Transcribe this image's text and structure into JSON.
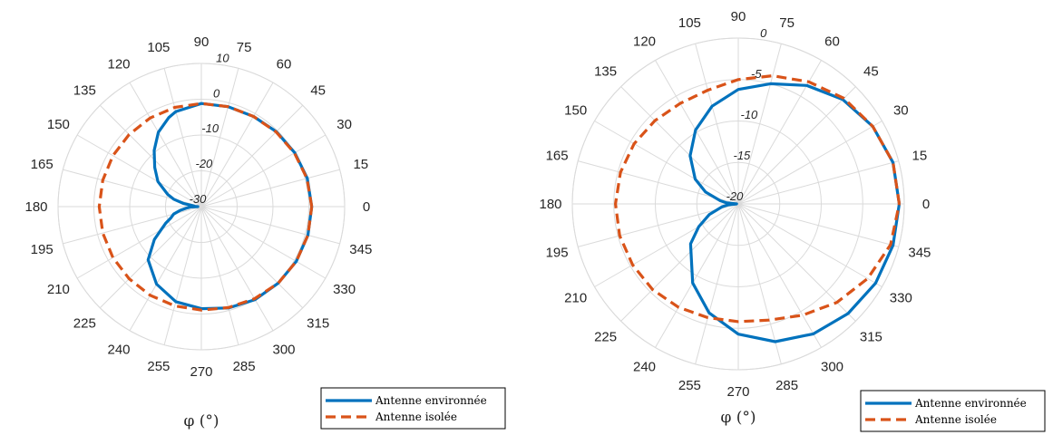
{
  "colors": {
    "environment": "#0072BD",
    "isolated": "#D95319",
    "grid": "#DADADA",
    "text": "#262626"
  },
  "chart_data": [
    {
      "type": "polar-line",
      "theta_unit": "degrees",
      "theta_ticks": [
        "0",
        "15",
        "30",
        "45",
        "60",
        "75",
        "90",
        "105",
        "120",
        "135",
        "150",
        "165",
        "180",
        "195",
        "210",
        "225",
        "240",
        "255",
        "270",
        "285",
        "300",
        "315",
        "330",
        "345"
      ],
      "r_ticks": [
        -30,
        -20,
        -10,
        0,
        10
      ],
      "r_tick_labels": [
        "-30",
        "-20",
        "-10",
        "0",
        "10"
      ],
      "rlim": [
        -30,
        10
      ],
      "theta_axis_label": "φ (°)",
      "legend_position": "bottom-right",
      "series": [
        {
          "name": "Antenne environnée",
          "style": "solid",
          "color": "#0072BD",
          "theta": [
            0,
            15,
            30,
            45,
            60,
            75,
            90,
            105,
            110,
            120,
            130,
            140,
            150,
            160,
            165,
            170,
            175,
            178,
            180,
            182,
            185,
            190,
            195,
            200,
            205,
            210,
            215,
            225,
            240,
            255,
            270,
            285,
            300,
            315,
            330,
            345,
            360
          ],
          "r": [
            0.8,
            0.6,
            0.1,
            -0.4,
            -0.9,
            -1.1,
            -1.2,
            -2.5,
            -3.5,
            -6,
            -9.5,
            -13,
            -16,
            -20,
            -22,
            -25,
            -28,
            -27,
            -29,
            -27,
            -26,
            -24,
            -22,
            -21,
            -19,
            -17,
            -14,
            -9,
            -5,
            -2.5,
            -1.5,
            -0.7,
            0,
            0.3,
            0.6,
            0.8,
            0.8
          ]
        },
        {
          "name": "Antenne isolée",
          "style": "dashed",
          "color": "#D95319",
          "theta": [
            0,
            15,
            30,
            45,
            60,
            75,
            90,
            105,
            120,
            135,
            150,
            165,
            180,
            195,
            210,
            225,
            240,
            255,
            270,
            285,
            300,
            315,
            330,
            345,
            360
          ],
          "r": [
            0.8,
            0.5,
            0,
            -0.5,
            -0.9,
            -1.1,
            -1.2,
            -1.3,
            -1.4,
            -1.5,
            -1.5,
            -1.5,
            -1.5,
            -1.5,
            -1.5,
            -1.5,
            -1.4,
            -1.3,
            -1.1,
            -0.8,
            -0.3,
            0.3,
            0.6,
            0.8,
            0.8
          ]
        }
      ]
    },
    {
      "type": "polar-line",
      "theta_unit": "degrees",
      "theta_ticks": [
        "0",
        "15",
        "30",
        "45",
        "60",
        "75",
        "90",
        "105",
        "120",
        "135",
        "150",
        "165",
        "180",
        "195",
        "210",
        "225",
        "240",
        "255",
        "270",
        "285",
        "300",
        "315",
        "330",
        "345"
      ],
      "r_ticks": [
        -20,
        -15,
        -10,
        -5,
        0
      ],
      "r_tick_labels": [
        "-20",
        "-15",
        "-10",
        "-5",
        "0"
      ],
      "rlim": [
        -20,
        0
      ],
      "theta_axis_label": "φ (°)",
      "legend_position": "bottom-right",
      "series": [
        {
          "name": "Antenne environnée",
          "style": "solid",
          "color": "#0072BD",
          "theta": [
            0,
            15,
            30,
            45,
            60,
            75,
            90,
            105,
            120,
            135,
            150,
            160,
            170,
            175,
            180,
            185,
            190,
            200,
            210,
            220,
            240,
            255,
            270,
            285,
            300,
            315,
            330,
            345,
            360
          ],
          "r": [
            -0.6,
            -0.7,
            -1.3,
            -2.2,
            -3.5,
            -5,
            -6.2,
            -7.8,
            -9.7,
            -11.8,
            -14,
            -15.8,
            -17.8,
            -18.6,
            -19.8,
            -18.8,
            -18,
            -16.3,
            -14.5,
            -12.5,
            -9,
            -6.4,
            -4.3,
            -2.8,
            -1.9,
            -1.3,
            -0.9,
            -0.7,
            -0.6
          ]
        },
        {
          "name": "Antenne isolée",
          "style": "dashed",
          "color": "#D95319",
          "theta": [
            0,
            15,
            30,
            45,
            60,
            75,
            90,
            105,
            120,
            135,
            150,
            165,
            180,
            195,
            210,
            225,
            240,
            255,
            270,
            285,
            300,
            315,
            330,
            345,
            360
          ],
          "r": [
            -0.6,
            -0.7,
            -1.3,
            -2,
            -3,
            -4,
            -5,
            -5.8,
            -6,
            -5.8,
            -5.5,
            -5.3,
            -5.2,
            -5.2,
            -5.3,
            -5.4,
            -5.6,
            -5.8,
            -5.8,
            -5.5,
            -4.5,
            -3.2,
            -2,
            -1,
            -0.6
          ]
        }
      ]
    }
  ]
}
